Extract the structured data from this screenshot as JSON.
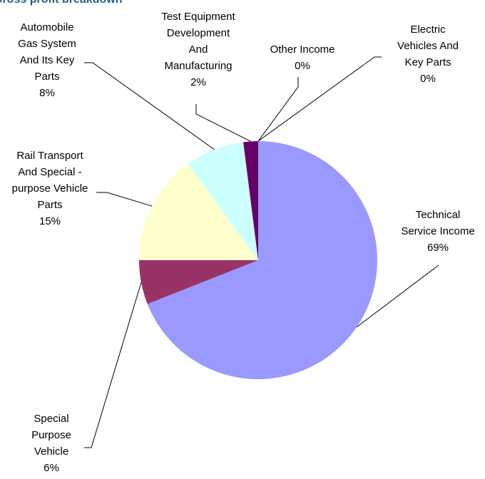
{
  "chart_data": {
    "type": "pie",
    "title": "Gross profit breakdown",
    "categories": [
      "Technical Service Income",
      "Special Purpose Vehicle",
      "Rail Transport And Special - purpose Vehicle Parts",
      "Automobile Gas System And Its Key Parts",
      "Test Equipment Development And Manufacturing",
      "Other Income",
      "Electric Vehicles And Key Parts"
    ],
    "values": [
      69,
      6,
      15,
      8,
      2,
      0,
      0
    ],
    "value_labels": [
      "69%",
      "6%",
      "15%",
      "8%",
      "2%",
      "0%",
      "0%"
    ],
    "colors": [
      "#9999ff",
      "#993366",
      "#ffffcc",
      "#ccffff",
      "#660066",
      "#ff8080",
      "#0066cc"
    ]
  }
}
